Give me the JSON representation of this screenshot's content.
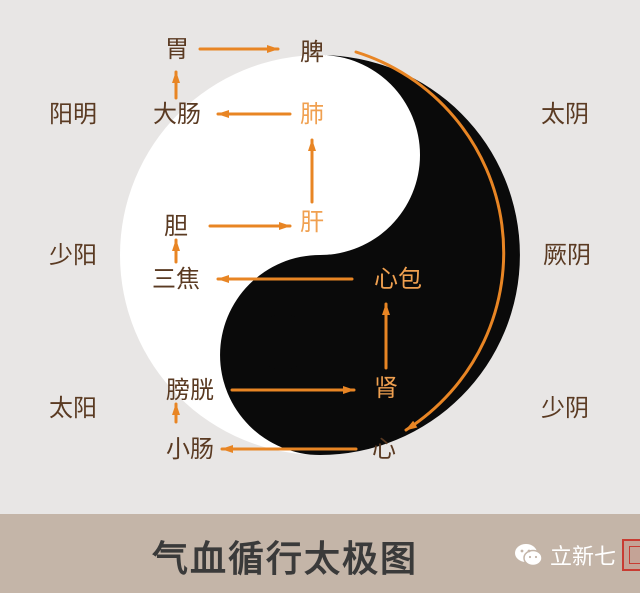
{
  "organs": {
    "wei": "胃",
    "pi": "脾",
    "dachang": "大肠",
    "fei": "肺",
    "dan": "胆",
    "gan": "肝",
    "sanjiao": "三焦",
    "xinbao": "心包",
    "pangguang": "膀胱",
    "shen": "肾",
    "xiaochang": "小肠",
    "xin": "心"
  },
  "meridians": {
    "left_top": "阳明",
    "left_mid": "少阳",
    "left_bottom": "太阳",
    "right_top": "太阴",
    "right_mid": "厥阴",
    "right_bottom": "少阴"
  },
  "footer": {
    "title": "气血循行太极图",
    "watermark": "立新七"
  },
  "colors": {
    "background": "#e8e6e5",
    "footer_band": "#c4b5a8",
    "arrow": "#e88524",
    "label_on_light": "#5a3a22",
    "label_on_dark": "#f0a050",
    "yin": "#0a0a0a",
    "yang": "#ffffff"
  }
}
